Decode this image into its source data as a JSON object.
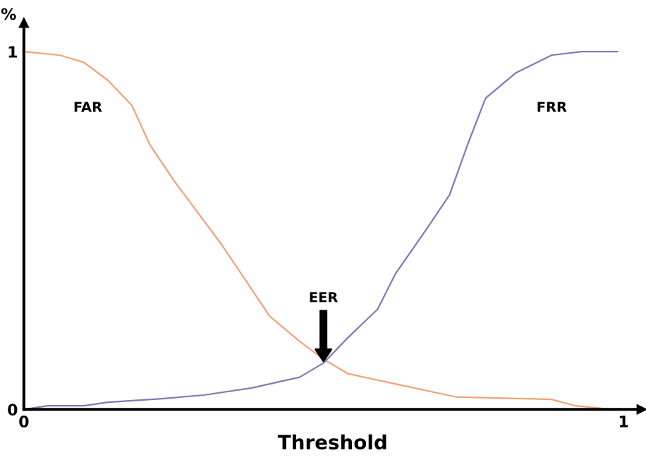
{
  "chart_data": {
    "type": "line",
    "xlabel": "Threshold",
    "ylabel": "%",
    "xlim": [
      0,
      1.03
    ],
    "ylim": [
      0,
      1.08
    ],
    "xticks": [
      0,
      1
    ],
    "yticks": [
      0,
      1
    ],
    "grid": false,
    "legend": false,
    "marker": "none",
    "line_style": "solid",
    "series": [
      {
        "name": "FAR",
        "color": "#f2a27a",
        "x": [
          0,
          0.06,
          0.1,
          0.14,
          0.18,
          0.21,
          0.25,
          0.29,
          0.33,
          0.37,
          0.41,
          0.46,
          0.5,
          0.54,
          0.64,
          0.72,
          0.88,
          0.92,
          0.98
        ],
        "values": [
          1.0,
          0.99,
          0.97,
          0.92,
          0.85,
          0.74,
          0.64,
          0.55,
          0.46,
          0.36,
          0.26,
          0.19,
          0.14,
          0.1,
          0.064,
          0.035,
          0.028,
          0.01,
          0.0
        ]
      },
      {
        "name": "FRR",
        "color": "#7c7cb8",
        "x": [
          0,
          0.04,
          0.1,
          0.14,
          0.23,
          0.3,
          0.38,
          0.46,
          0.5,
          0.54,
          0.59,
          0.62,
          0.67,
          0.71,
          0.74,
          0.77,
          0.82,
          0.88,
          0.93,
          0.99
        ],
        "values": [
          0.0,
          0.01,
          0.01,
          0.02,
          0.03,
          0.04,
          0.06,
          0.09,
          0.13,
          0.2,
          0.28,
          0.38,
          0.5,
          0.6,
          0.74,
          0.87,
          0.94,
          0.99,
          1.0,
          1.0
        ]
      }
    ],
    "annotations": [
      "EER"
    ]
  }
}
